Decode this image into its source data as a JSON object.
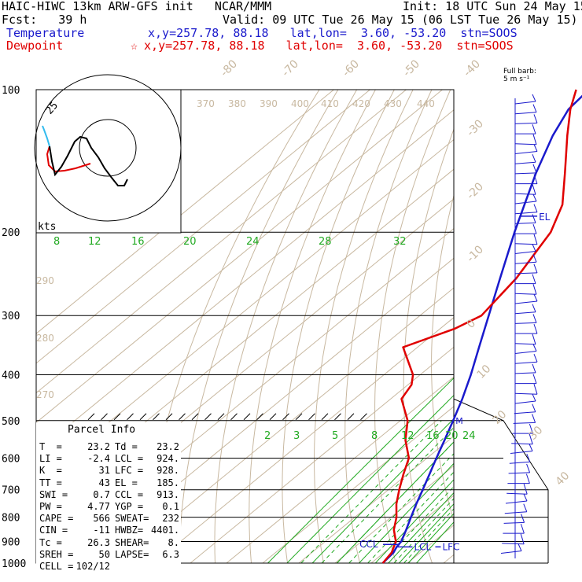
{
  "header": {
    "line1_left": "HAIC-HIWC 13km ARW-GFS init   NCAR/MMM",
    "line1_right": "Init: 18 UTC Sun 24 May 15",
    "line2_left": "Fcst:   39 h",
    "line2_right": "Valid: 09 UTC Tue 26 May 15 (06 LST Tue 26 May 15)",
    "temp_label": "Temperature",
    "temp_info": "x,y=257.78, 88.18   lat,lon=  3.60, -53.20  stn=SOOS",
    "dew_label": "Dewpoint",
    "dew_marker": "☆",
    "dew_info": " x,y=257.78, 88.18   lat,lon=  3.60, -53.20  stn=SOOS"
  },
  "colors": {
    "temperature": "#1a1acc",
    "dewpoint": "#e00000",
    "isotherm": "#c8b8a0",
    "mixing_ratio": "#22aa22",
    "hodograph": "#000000",
    "barb": "#1a1acc"
  },
  "barb_label": "Full barb:\n5 m s⁻¹",
  "parcel_info": {
    "title": "Parcel Info",
    "rows": [
      [
        "T  =",
        "23.2",
        "Td =",
        "23.2"
      ],
      [
        "LI =",
        "-2.4",
        "LCL =",
        "924."
      ],
      [
        "K  =",
        "31",
        "LFC =",
        "928."
      ],
      [
        "TT =",
        "43",
        "EL =",
        "185."
      ],
      [
        "SWI =",
        "0.7",
        "CCL =",
        "913."
      ],
      [
        "PW =",
        "4.77",
        "YGP =",
        "0.1"
      ],
      [
        "CAPE =",
        "566",
        "SWEAT=",
        "232"
      ],
      [
        "CIN =",
        "-11",
        "HWBZ=",
        "4401."
      ],
      [
        "Tc =",
        "26.3",
        "SHEAR=",
        "8."
      ],
      [
        "SREH =",
        "50",
        "LAPSE=",
        "6.3"
      ],
      [
        "CELL =",
        "102/12",
        "",
        ""
      ]
    ]
  },
  "chart_data": {
    "type": "line",
    "diagram": "skew-T log-p",
    "y_axis": {
      "scale": "log",
      "range": [
        1000,
        100
      ],
      "ticks": [
        100,
        200,
        300,
        400,
        500,
        600,
        700,
        800,
        900,
        1000
      ]
    },
    "isotherm_labels": [
      -80,
      -70,
      -60,
      -50,
      -40,
      -30,
      -20,
      -10,
      0,
      10,
      20,
      30,
      40
    ],
    "theta_labels": [
      370,
      380,
      390,
      400,
      410,
      420,
      430,
      440,
      290,
      280,
      270
    ],
    "mixing_ratio_labels": [
      8,
      12,
      16,
      20,
      24,
      28,
      32
    ],
    "mixing_ratio_lower_labels": [
      2,
      3,
      5,
      8,
      12,
      16,
      20,
      24
    ],
    "series": [
      {
        "name": "Temperature",
        "points": [
          [
            1000,
            23.2
          ],
          [
            950,
            22.6
          ],
          [
            925,
            21.6
          ],
          [
            900,
            21.0
          ],
          [
            850,
            18.4
          ],
          [
            800,
            15.5
          ],
          [
            750,
            12.5
          ],
          [
            700,
            9.5
          ],
          [
            650,
            6.2
          ],
          [
            600,
            2.6
          ],
          [
            550,
            -1.2
          ],
          [
            500,
            -5.4
          ],
          [
            450,
            -10.2
          ],
          [
            400,
            -16.0
          ],
          [
            350,
            -23.0
          ],
          [
            300,
            -31.0
          ],
          [
            250,
            -40.5
          ],
          [
            200,
            -52.0
          ],
          [
            175,
            -58.5
          ],
          [
            150,
            -66.0
          ],
          [
            125,
            -74.0
          ],
          [
            110,
            -78.5
          ],
          [
            100,
            -79.5
          ]
        ]
      },
      {
        "name": "Dewpoint",
        "points": [
          [
            1000,
            23.2
          ],
          [
            950,
            22.1
          ],
          [
            900,
            19.5
          ],
          [
            850,
            15.0
          ],
          [
            800,
            11.5
          ],
          [
            750,
            7.0
          ],
          [
            700,
            3.0
          ],
          [
            650,
            -1.0
          ],
          [
            600,
            -5.0
          ],
          [
            550,
            -12.0
          ],
          [
            500,
            -18.0
          ],
          [
            450,
            -27.0
          ],
          [
            420,
            -29.0
          ],
          [
            400,
            -32.0
          ],
          [
            350,
            -44.0
          ],
          [
            320,
            -36.0
          ],
          [
            300,
            -33.0
          ],
          [
            250,
            -36.0
          ],
          [
            200,
            -42.0
          ],
          [
            175,
            -48.0
          ],
          [
            150,
            -58.0
          ],
          [
            125,
            -70.0
          ],
          [
            110,
            -78.0
          ],
          [
            100,
            -83.0
          ]
        ]
      }
    ],
    "levels": {
      "CCL": 913,
      "LCL": 924,
      "LFC": 928,
      "EL": 185,
      "M": 500
    },
    "level_labels": [
      "CCL",
      "LCL",
      "LFC",
      "EL",
      "M"
    ],
    "hodograph_label": "kts",
    "hodograph_ring_label": "25"
  }
}
